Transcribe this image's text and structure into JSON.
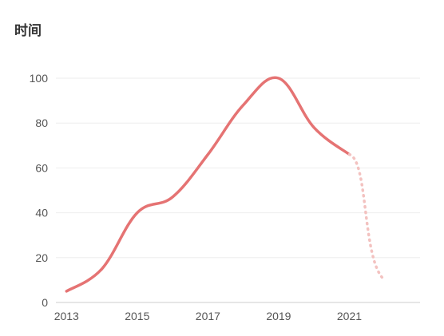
{
  "chart_data": {
    "type": "line",
    "title": "时间",
    "xlabel": "",
    "ylabel": "",
    "ylim": [
      0,
      100
    ],
    "yticks": [
      0,
      20,
      40,
      60,
      80,
      100
    ],
    "xlim": [
      2012.7,
      2023.0
    ],
    "xticks": [
      2013,
      2015,
      2017,
      2019,
      2021
    ],
    "grid": true,
    "series": [
      {
        "style": "solid",
        "color": "#e57373",
        "x": [
          2013,
          2014,
          2015,
          2016,
          2017,
          2018,
          2019,
          2020,
          2021
        ],
        "y": [
          5,
          15,
          40,
          47,
          66,
          88,
          100,
          78,
          66
        ]
      },
      {
        "style": "dotted",
        "color": "#f3c2c0",
        "x": [
          2021,
          2022
        ],
        "y": [
          66,
          10
        ]
      }
    ]
  }
}
